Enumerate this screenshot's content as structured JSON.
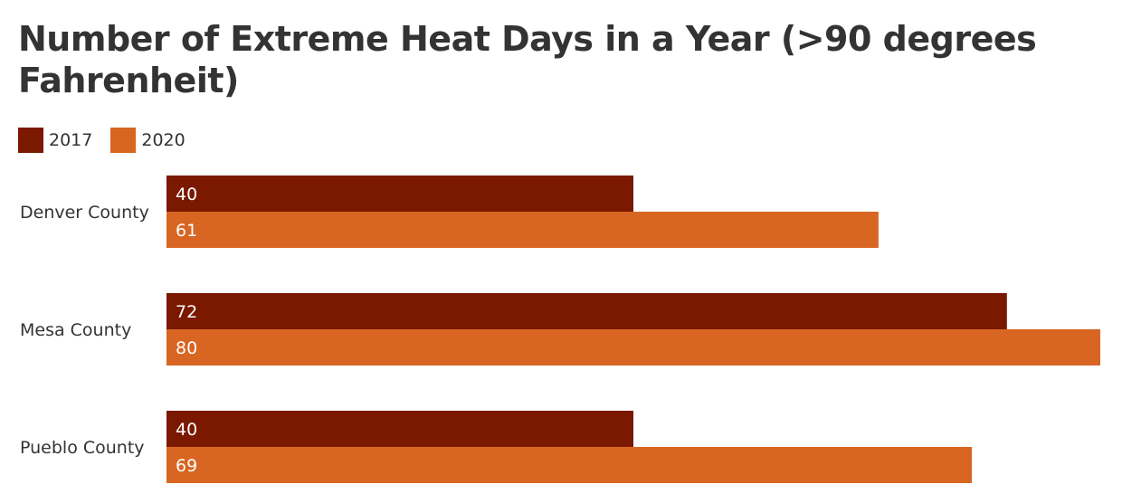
{
  "chart_data": {
    "type": "bar",
    "orientation": "horizontal",
    "title": "Number of Extreme Heat Days in a Year (>90 degrees Fahrenheit)",
    "categories": [
      "Denver County",
      "Mesa County",
      "Pueblo County"
    ],
    "series": [
      {
        "name": "2017",
        "color": "#7b1800",
        "values": [
          40,
          72,
          40
        ]
      },
      {
        "name": "2020",
        "color": "#d86522",
        "values": [
          61,
          80,
          69
        ]
      }
    ],
    "xlim": [
      0,
      80
    ],
    "grid": false,
    "legend": "top-left"
  }
}
